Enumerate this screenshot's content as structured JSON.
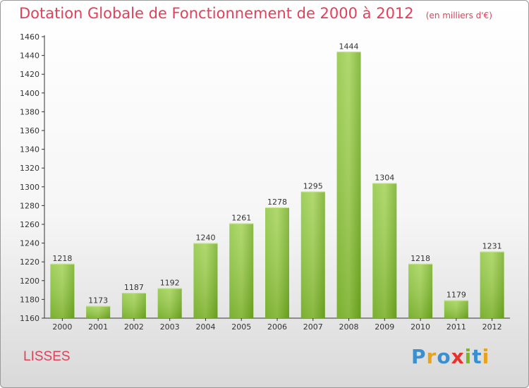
{
  "chart_data": {
    "type": "bar",
    "title": "Dotation Globale de Fonctionnement de 2000 à 2012",
    "subtitle": "(en milliers d'€)",
    "categories": [
      "2000",
      "2001",
      "2002",
      "2003",
      "2004",
      "2005",
      "2006",
      "2007",
      "2008",
      "2009",
      "2010",
      "2011",
      "2012"
    ],
    "values": [
      1218,
      1173,
      1187,
      1192,
      1240,
      1261,
      1278,
      1295,
      1444,
      1304,
      1218,
      1179,
      1231
    ],
    "ylim": [
      1160,
      1460
    ],
    "yticks": [
      1160,
      1180,
      1200,
      1220,
      1240,
      1260,
      1280,
      1300,
      1320,
      1340,
      1360,
      1380,
      1400,
      1420,
      1440,
      1460
    ],
    "grid": false,
    "bar_color": "#7dbb2a"
  },
  "footer": {
    "city": "LISSES",
    "brand_letters": [
      {
        "char": "P",
        "color": "#3a8fd0"
      },
      {
        "char": "r",
        "color": "#e8a21c"
      },
      {
        "char": "o",
        "color": "#3a8fd0"
      },
      {
        "char": "x",
        "color": "#e8302c"
      },
      {
        "char": "i",
        "color": "#7ab82a"
      },
      {
        "char": "t",
        "color": "#3a8fd0"
      },
      {
        "char": "i",
        "color": "#e8a21c"
      }
    ]
  }
}
